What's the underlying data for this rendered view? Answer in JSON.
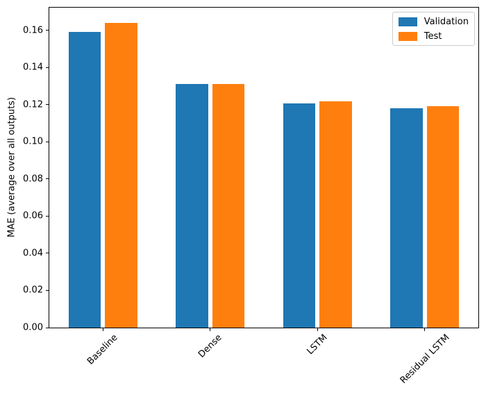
{
  "chart_data": {
    "type": "bar",
    "categories": [
      "Baseline",
      "Dense",
      "LSTM",
      "Residual LSTM"
    ],
    "series": [
      {
        "name": "Validation",
        "color": "#1f77b4",
        "values": [
          0.159,
          0.1312,
          0.1205,
          0.1181
        ]
      },
      {
        "name": "Test",
        "color": "#ff7f0e",
        "values": [
          0.164,
          0.131,
          0.1218,
          0.1192
        ]
      }
    ],
    "ylabel": "MAE (average over all outputs)",
    "ylim": [
      0,
      0.1722
    ],
    "yticks": [
      "0.00",
      "0.02",
      "0.04",
      "0.06",
      "0.08",
      "0.10",
      "0.12",
      "0.14",
      "0.16"
    ],
    "legend": {
      "position": "upper right",
      "entries": [
        "Validation",
        "Test"
      ]
    },
    "grid": false,
    "x_tick_label_rotation": 45,
    "bar_width_units": 0.3,
    "bar_offset_units": 0.17
  }
}
